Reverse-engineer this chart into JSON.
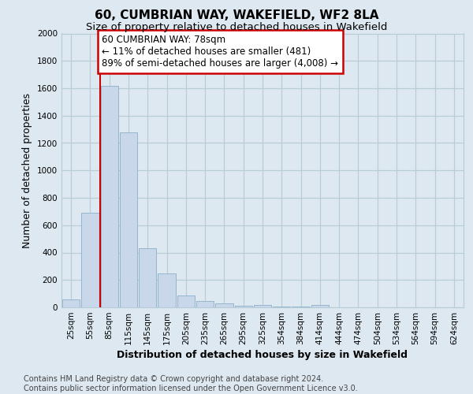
{
  "title": "60, CUMBRIAN WAY, WAKEFIELD, WF2 8LA",
  "subtitle": "Size of property relative to detached houses in Wakefield",
  "xlabel": "Distribution of detached houses by size in Wakefield",
  "ylabel": "Number of detached properties",
  "annotation_line1": "60 CUMBRIAN WAY: 78sqm",
  "annotation_line2": "← 11% of detached houses are smaller (481)",
  "annotation_line3": "89% of semi-detached houses are larger (4,008) →",
  "footer_line1": "Contains HM Land Registry data © Crown copyright and database right 2024.",
  "footer_line2": "Contains public sector information licensed under the Open Government Licence v3.0.",
  "bar_color": "#c8d8ea",
  "bar_edge_color": "#8aafc8",
  "property_line_color": "#cc0000",
  "annotation_box_color": "#cc0000",
  "categories": [
    "25sqm",
    "55sqm",
    "85sqm",
    "115sqm",
    "145sqm",
    "175sqm",
    "205sqm",
    "235sqm",
    "265sqm",
    "295sqm",
    "325sqm",
    "354sqm",
    "384sqm",
    "414sqm",
    "444sqm",
    "474sqm",
    "504sqm",
    "534sqm",
    "564sqm",
    "594sqm",
    "624sqm"
  ],
  "values": [
    60,
    690,
    1620,
    1280,
    430,
    250,
    85,
    45,
    30,
    10,
    20,
    5,
    3,
    15,
    2,
    0,
    0,
    0,
    0,
    0,
    0
  ],
  "property_line_x": 2,
  "ylim": [
    0,
    2000
  ],
  "yticks": [
    0,
    200,
    400,
    600,
    800,
    1000,
    1200,
    1400,
    1600,
    1800,
    2000
  ],
  "background_color": "#dde8f0",
  "plot_bg_color": "#dde8f0",
  "grid_color": "#b8ccd8",
  "title_fontsize": 11,
  "subtitle_fontsize": 9.5,
  "axis_label_fontsize": 9,
  "tick_fontsize": 7.5,
  "footer_fontsize": 7,
  "annotation_fontsize": 8.5
}
